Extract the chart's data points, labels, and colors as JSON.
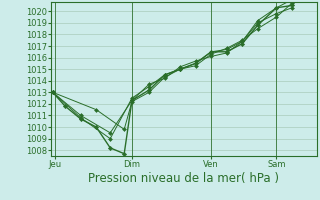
{
  "bg_color": "#cdecea",
  "grid_color": "#aaccbb",
  "line_color": "#2a6e2a",
  "marker_color": "#2a6e2a",
  "xlabel": "Pression niveau de la mer( hPa )",
  "xlabel_fontsize": 8.5,
  "ylabel_fontsize": 6,
  "ylim": [
    1007.5,
    1020.8
  ],
  "yticks": [
    1008,
    1009,
    1010,
    1011,
    1012,
    1013,
    1014,
    1015,
    1016,
    1017,
    1018,
    1019,
    1020
  ],
  "xtick_labels": [
    "Jeu",
    "Dim",
    "Ven",
    "Sam"
  ],
  "xtick_positions": [
    0.08,
    2.55,
    5.1,
    7.2
  ],
  "xvlines": [
    0.08,
    2.55,
    5.1,
    7.2
  ],
  "xlim": [
    -0.05,
    8.5
  ],
  "series": [
    {
      "x": [
        0.0,
        0.4,
        0.9,
        1.4,
        1.85,
        2.3,
        2.55,
        3.1,
        3.6,
        4.1,
        4.6,
        5.1,
        5.6,
        6.1,
        6.6,
        7.2,
        7.7
      ],
      "y": [
        1013.0,
        1011.8,
        1010.7,
        1010.0,
        1008.2,
        1007.7,
        1012.3,
        1013.2,
        1014.5,
        1015.0,
        1015.5,
        1016.5,
        1016.5,
        1017.2,
        1018.8,
        1020.3,
        1020.5
      ],
      "marker": "D",
      "markersize": 2.2,
      "linewidth": 1.0
    },
    {
      "x": [
        0.0,
        0.9,
        1.85,
        2.55,
        3.1,
        3.6,
        4.1,
        4.6,
        5.1,
        5.6,
        6.1,
        6.6,
        7.2,
        7.7
      ],
      "y": [
        1013.0,
        1010.8,
        1009.0,
        1012.5,
        1013.5,
        1014.5,
        1015.0,
        1015.5,
        1016.5,
        1016.7,
        1017.4,
        1019.0,
        1019.8,
        1020.3
      ],
      "marker": "D",
      "markersize": 2.0,
      "linewidth": 0.7
    },
    {
      "x": [
        0.0,
        0.9,
        1.85,
        2.55,
        3.1,
        3.6,
        4.1,
        4.6,
        5.1,
        5.6,
        6.1,
        6.6,
        7.2,
        7.7
      ],
      "y": [
        1013.0,
        1011.0,
        1009.5,
        1012.3,
        1013.7,
        1014.2,
        1015.2,
        1015.7,
        1016.1,
        1016.4,
        1017.4,
        1019.2,
        1020.3,
        1021.0
      ],
      "marker": "D",
      "markersize": 2.0,
      "linewidth": 0.7
    },
    {
      "x": [
        0.0,
        1.4,
        2.3,
        2.55,
        3.1,
        3.6,
        4.1,
        4.6,
        5.1,
        5.6,
        6.1,
        6.6,
        7.2,
        7.7
      ],
      "y": [
        1013.0,
        1011.5,
        1009.8,
        1012.2,
        1013.0,
        1014.3,
        1015.0,
        1015.3,
        1016.3,
        1016.8,
        1017.5,
        1018.5,
        1019.5,
        1020.7
      ],
      "marker": "D",
      "markersize": 2.0,
      "linewidth": 0.7
    }
  ]
}
